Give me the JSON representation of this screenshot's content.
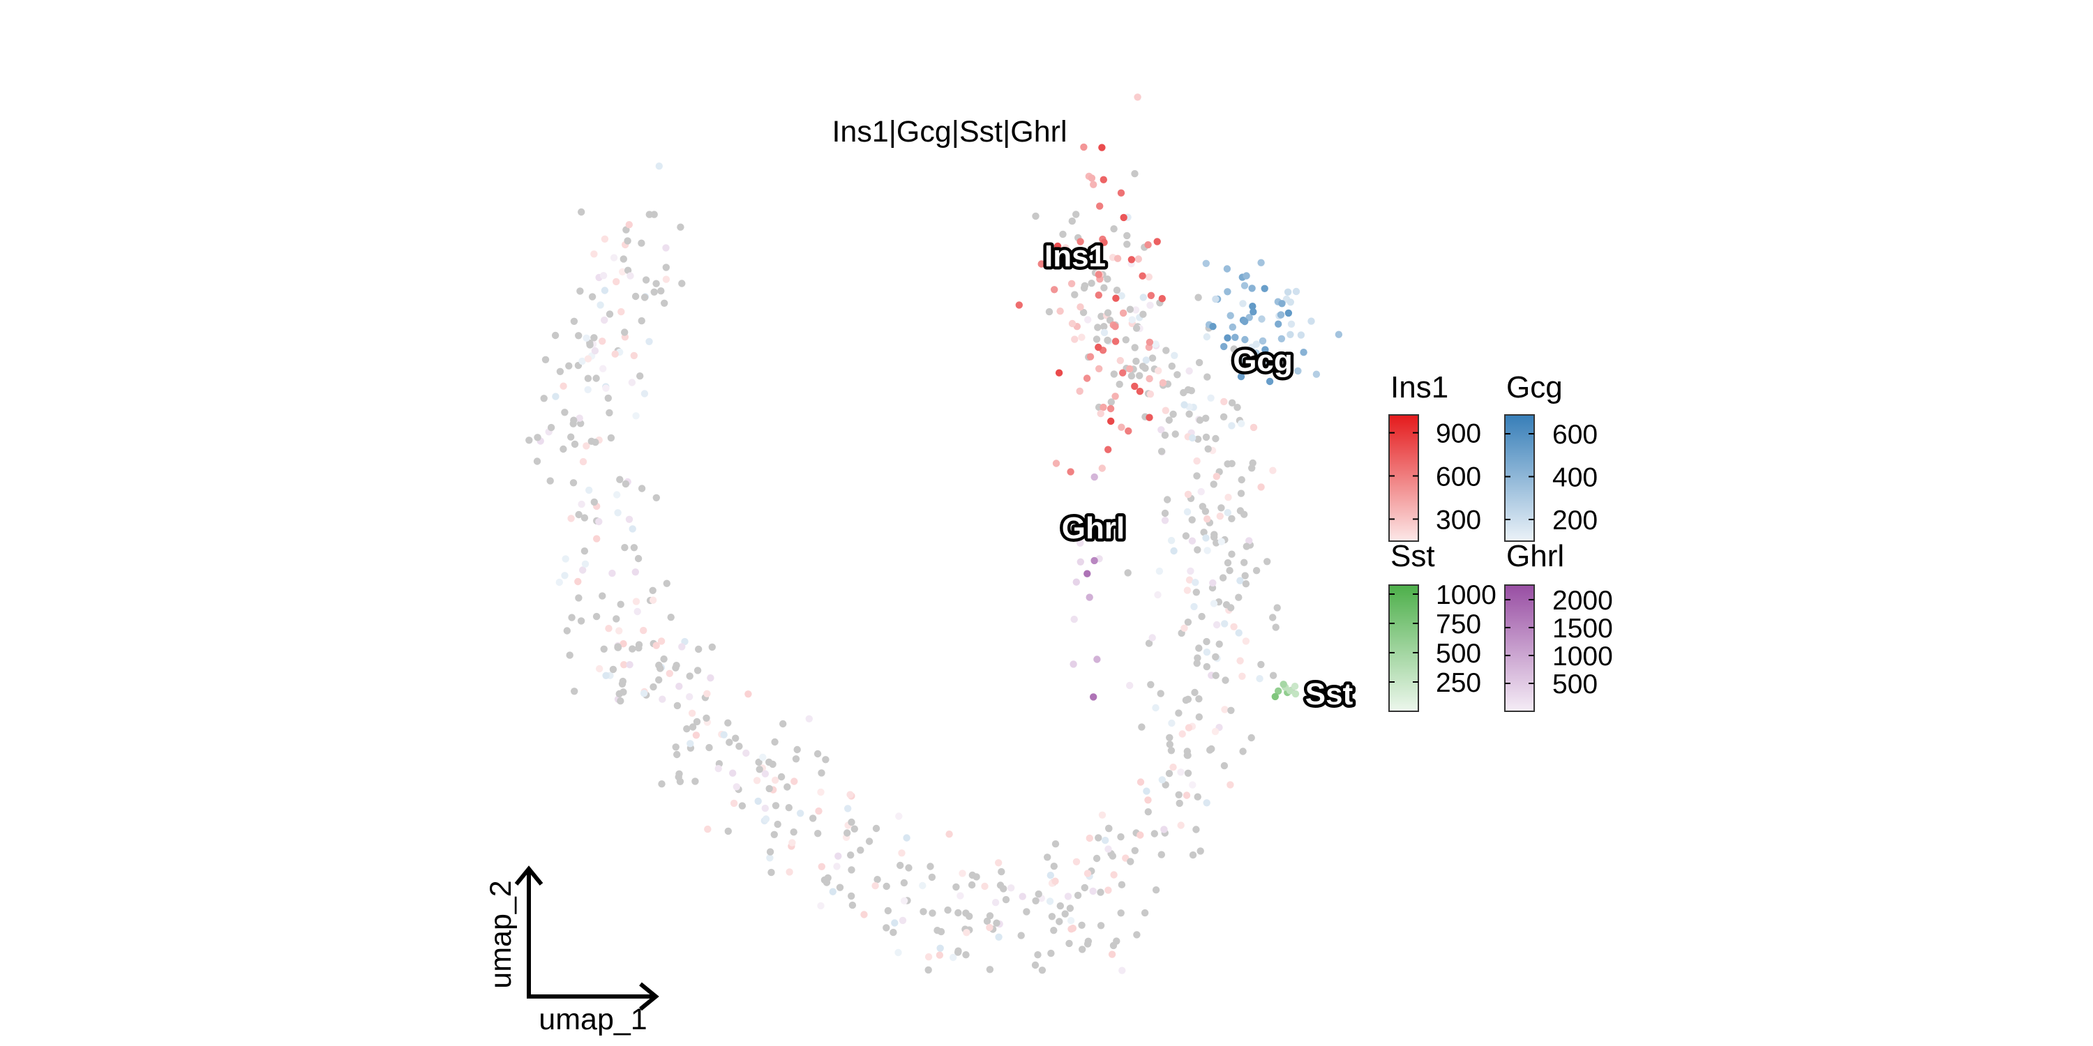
{
  "chart_data": {
    "type": "scatter",
    "title": "Ins1|Gcg|Sst|Ghrl",
    "xlabel": "umap_1",
    "ylabel": "umap_2",
    "xlim": [
      -10,
      10
    ],
    "ylim": [
      -10,
      10
    ],
    "grid": false,
    "background_color": "#c8c8c8",
    "trajectory": [
      [
        -7.96,
        8.9
      ],
      [
        -9.36,
        4.23
      ],
      [
        -8.66,
        -1.32
      ],
      [
        -6.23,
        -4.11
      ],
      [
        -3.46,
        -6.54
      ],
      [
        0.02,
        -9.3
      ],
      [
        3.48,
        -8.27
      ],
      [
        5.91,
        -5.48
      ],
      [
        6.96,
        -0.98
      ],
      [
        6.96,
        3.2
      ],
      [
        5.21,
        5.27
      ],
      [
        3.48,
        8.75
      ]
    ],
    "features": [
      {
        "name": "Ins1",
        "color": "#e41a1c",
        "center": [
          3.9,
          6.6
        ],
        "spread": [
          0.8,
          2.2
        ],
        "n": 70,
        "ticks": [
          300,
          600,
          900
        ],
        "range": [
          147,
          1024
        ]
      },
      {
        "name": "Gcg",
        "color": "#377eb8",
        "center": [
          8.0,
          6.5
        ],
        "spread": [
          0.7,
          0.8
        ],
        "n": 55,
        "ticks": [
          200,
          400,
          600
        ],
        "range": [
          99,
          688
        ]
      },
      {
        "name": "Sst",
        "color": "#4daf4a",
        "center": [
          8.6,
          -3.0
        ],
        "spread": [
          0.25,
          0.15
        ],
        "n": 8,
        "ticks": [
          250,
          500,
          750,
          1000
        ],
        "range": [
          0,
          1077
        ]
      },
      {
        "name": "Ghrl",
        "color": "#984ea3",
        "center": [
          3.4,
          0.0
        ],
        "spread": [
          0.3,
          1.6
        ],
        "n": 12,
        "ticks": [
          500,
          1000,
          1500,
          2000
        ],
        "range": [
          0,
          2262
        ]
      }
    ],
    "legend_position": "right"
  }
}
